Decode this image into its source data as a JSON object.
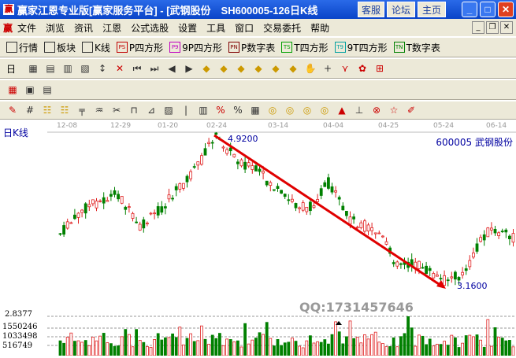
{
  "window": {
    "title": "赢家江恩专业版[赢家服务平台] - [武钢股份　SH600005-126日K线",
    "buttons": [
      "客服",
      "论坛",
      "主页"
    ]
  },
  "menu": [
    "文件",
    "浏览",
    "资讯",
    "江恩",
    "公式选股",
    "设置",
    "工具",
    "窗口",
    "交易委托",
    "帮助"
  ],
  "toolbar1": [
    {
      "icon": "grid-icon",
      "label": "行情"
    },
    {
      "icon": "blocks-icon",
      "label": "板块"
    },
    {
      "icon": "candles-icon",
      "label": "K线"
    },
    {
      "icon": "PS",
      "label": "P四方形",
      "color": "#c00000"
    },
    {
      "icon": "P9",
      "label": "9P四方形",
      "color": "#c000c0"
    },
    {
      "icon": "PN",
      "label": "P数字表",
      "color": "#800000"
    },
    {
      "icon": "TS",
      "label": "T四方形",
      "color": "#00a000"
    },
    {
      "icon": "T9",
      "label": "9T四方形",
      "color": "#00a0a0"
    },
    {
      "icon": "TN",
      "label": "T数字表",
      "color": "#008000"
    }
  ],
  "toolbar2_label": "日",
  "chart": {
    "label": "日K线",
    "dates": [
      "12-08",
      "12-29",
      "01-20",
      "02-24",
      "03-14",
      "04-04",
      "04-25",
      "05-24",
      "06-14"
    ],
    "stock": "600005 武钢股份",
    "high_label": "4.9200",
    "low_label": "3.1600",
    "watermark": "QQ:1731457646",
    "volume_scale": [
      "2.8377",
      "1550246",
      "1033498",
      "516749"
    ],
    "up_color": "#e02020",
    "down_color": "#008000",
    "trend_color": "#e00000"
  }
}
